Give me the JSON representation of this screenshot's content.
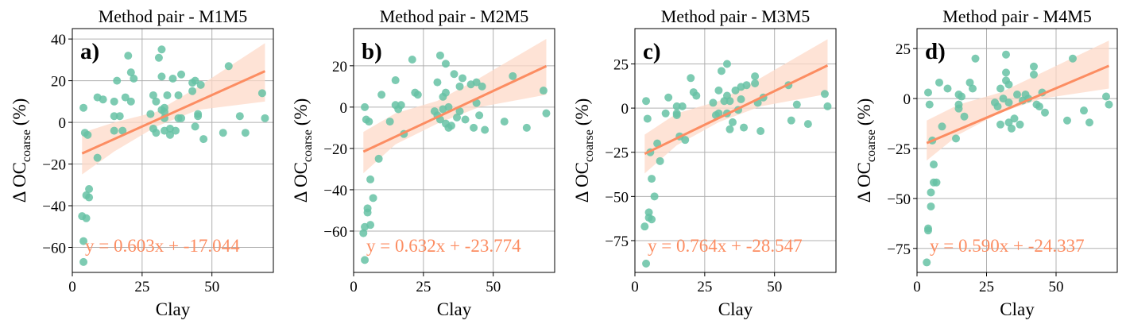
{
  "colors": {
    "points": "#66c2a5",
    "fit_line": "#fc8d62",
    "ci_band": "#fdd9c8",
    "grid": "#b0b0b0",
    "axes": "#000000"
  },
  "chart_data": [
    {
      "type": "scatter",
      "title": "Method pair - M1M5",
      "panel_label": "a)",
      "xlabel": "Clay",
      "ylabel_main": "Δ OC",
      "ylabel_sub": "coarse",
      "ylabel_unit": "(%)",
      "equation": "y = 0.603x + -17.044",
      "xlim": [
        0,
        72
      ],
      "ylim": [
        -72,
        45
      ],
      "xticks": [
        0,
        25,
        50
      ],
      "yticks": [
        -60,
        -40,
        -20,
        0,
        20,
        40
      ],
      "grid": true,
      "fit": {
        "slope": 0.603,
        "intercept": -17.044,
        "x_range": [
          3.5,
          69
        ]
      },
      "ci": {
        "lower": [
          [
            3.5,
            -25
          ],
          [
            15,
            -14
          ],
          [
            30,
            -2
          ],
          [
            45,
            6
          ],
          [
            69,
            10
          ]
        ],
        "upper": [
          [
            3.5,
            -5
          ],
          [
            15,
            0
          ],
          [
            30,
            5
          ],
          [
            45,
            17
          ],
          [
            69,
            38
          ]
        ]
      },
      "points": [
        [
          3.5,
          -45
        ],
        [
          4,
          -67
        ],
        [
          4,
          -57
        ],
        [
          4,
          7
        ],
        [
          4.5,
          -5
        ],
        [
          5,
          -46
        ],
        [
          5,
          -35
        ],
        [
          5.5,
          -6
        ],
        [
          6,
          -32
        ],
        [
          6,
          -36
        ],
        [
          9,
          -17
        ],
        [
          9,
          12
        ],
        [
          11,
          11
        ],
        [
          15,
          10
        ],
        [
          15,
          3
        ],
        [
          15,
          -4
        ],
        [
          16,
          20
        ],
        [
          17,
          3
        ],
        [
          18,
          -4
        ],
        [
          19,
          12
        ],
        [
          20,
          32
        ],
        [
          21,
          24
        ],
        [
          21,
          10
        ],
        [
          22,
          21
        ],
        [
          28,
          4
        ],
        [
          29,
          13
        ],
        [
          29,
          -3
        ],
        [
          30,
          -5
        ],
        [
          30,
          10
        ],
        [
          31,
          31
        ],
        [
          32,
          35
        ],
        [
          32,
          22
        ],
        [
          32,
          6
        ],
        [
          33,
          7
        ],
        [
          33,
          5
        ],
        [
          33,
          2
        ],
        [
          33,
          -4
        ],
        [
          34,
          13
        ],
        [
          35,
          -6
        ],
        [
          35,
          -3
        ],
        [
          36,
          21
        ],
        [
          37,
          -4
        ],
        [
          38,
          2
        ],
        [
          38,
          13
        ],
        [
          39,
          23
        ],
        [
          39,
          2
        ],
        [
          43,
          15
        ],
        [
          43,
          19
        ],
        [
          44,
          20
        ],
        [
          44,
          -2
        ],
        [
          45,
          4
        ],
        [
          45,
          3
        ],
        [
          46,
          18
        ],
        [
          47,
          -8
        ],
        [
          54,
          -5
        ],
        [
          56,
          27
        ],
        [
          60,
          3
        ],
        [
          62,
          -5
        ],
        [
          68,
          14
        ],
        [
          69,
          2
        ]
      ]
    },
    {
      "type": "scatter",
      "title": "Method pair - M2M5",
      "panel_label": "b)",
      "xlabel": "Clay",
      "ylabel_main": "Δ OC",
      "ylabel_sub": "coarse",
      "ylabel_unit": "(%)",
      "equation": "y = 0.632x + -23.774",
      "xlim": [
        0,
        72
      ],
      "ylim": [
        -80,
        38
      ],
      "xticks": [
        0,
        25,
        50
      ],
      "yticks": [
        -60,
        -40,
        -20,
        0,
        20
      ],
      "grid": true,
      "fit": {
        "slope": 0.632,
        "intercept": -23.774,
        "x_range": [
          3.5,
          69
        ]
      },
      "ci": {
        "lower": [
          [
            3.5,
            -32
          ],
          [
            15,
            -18
          ],
          [
            30,
            -8
          ],
          [
            45,
            0
          ],
          [
            69,
            6
          ]
        ],
        "upper": [
          [
            3.5,
            -12
          ],
          [
            15,
            -3
          ],
          [
            30,
            3
          ],
          [
            45,
            14
          ],
          [
            69,
            33
          ]
        ]
      },
      "points": [
        [
          3.5,
          -61
        ],
        [
          4,
          -74
        ],
        [
          4,
          -58
        ],
        [
          4,
          0
        ],
        [
          4.5,
          -6
        ],
        [
          5,
          -51
        ],
        [
          5,
          -49
        ],
        [
          5.5,
          -7
        ],
        [
          6,
          -57
        ],
        [
          6,
          -35
        ],
        [
          7,
          -44
        ],
        [
          9,
          -25
        ],
        [
          10,
          6
        ],
        [
          13,
          -7
        ],
        [
          15,
          1
        ],
        [
          15,
          13
        ],
        [
          16,
          -1
        ],
        [
          17,
          1
        ],
        [
          18,
          -13
        ],
        [
          21,
          23
        ],
        [
          22,
          7
        ],
        [
          23,
          6
        ],
        [
          29,
          -2
        ],
        [
          30,
          -4
        ],
        [
          30,
          12
        ],
        [
          31,
          -6
        ],
        [
          31,
          25
        ],
        [
          32,
          -1
        ],
        [
          32,
          5
        ],
        [
          33,
          21
        ],
        [
          33,
          7
        ],
        [
          33,
          -8
        ],
        [
          34,
          0
        ],
        [
          34,
          -10
        ],
        [
          35,
          -9
        ],
        [
          36,
          16
        ],
        [
          37,
          -5
        ],
        [
          38,
          10
        ],
        [
          38,
          -2
        ],
        [
          39,
          14
        ],
        [
          40,
          -6
        ],
        [
          42,
          11
        ],
        [
          43,
          -10
        ],
        [
          44,
          12
        ],
        [
          44,
          2
        ],
        [
          45,
          -4
        ],
        [
          46,
          10
        ],
        [
          47,
          -11
        ],
        [
          54,
          -7
        ],
        [
          57,
          15
        ],
        [
          62,
          -10
        ],
        [
          68,
          8
        ],
        [
          69,
          -3
        ]
      ]
    },
    {
      "type": "scatter",
      "title": "Method pair - M3M5",
      "panel_label": "c)",
      "xlabel": "Clay",
      "ylabel_main": "Δ OC",
      "ylabel_sub": "coarse",
      "ylabel_unit": "(%)",
      "equation": "y = 0.764x + -28.547",
      "xlim": [
        0,
        72
      ],
      "ylim": [
        -93,
        45
      ],
      "xticks": [
        0,
        25,
        50
      ],
      "yticks": [
        -75,
        -50,
        -25,
        0,
        25
      ],
      "grid": true,
      "fit": {
        "slope": 0.764,
        "intercept": -28.547,
        "x_range": [
          3.5,
          69
        ]
      },
      "ci": {
        "lower": [
          [
            3.5,
            -37
          ],
          [
            15,
            -21
          ],
          [
            30,
            -8
          ],
          [
            45,
            1
          ],
          [
            69,
            8
          ]
        ],
        "upper": [
          [
            3.5,
            -15
          ],
          [
            15,
            -3
          ],
          [
            30,
            4
          ],
          [
            45,
            17
          ],
          [
            69,
            39
          ]
        ]
      },
      "points": [
        [
          3.5,
          -67
        ],
        [
          4,
          -88
        ],
        [
          4,
          4
        ],
        [
          4.5,
          -6
        ],
        [
          5,
          -62
        ],
        [
          5,
          -59
        ],
        [
          5.5,
          -25
        ],
        [
          6,
          -63
        ],
        [
          6,
          -40
        ],
        [
          7,
          -50
        ],
        [
          8,
          -20
        ],
        [
          9,
          -30
        ],
        [
          11,
          -3
        ],
        [
          12,
          6
        ],
        [
          15,
          1
        ],
        [
          15,
          -3
        ],
        [
          15,
          -4
        ],
        [
          16,
          -16
        ],
        [
          17,
          1
        ],
        [
          18,
          -18
        ],
        [
          20,
          17
        ],
        [
          21,
          9
        ],
        [
          22,
          7
        ],
        [
          28,
          3
        ],
        [
          29,
          -4
        ],
        [
          30,
          10
        ],
        [
          30,
          -3
        ],
        [
          31,
          21
        ],
        [
          32,
          4
        ],
        [
          33,
          25
        ],
        [
          33,
          7
        ],
        [
          33,
          -3
        ],
        [
          34,
          -12
        ],
        [
          34,
          4
        ],
        [
          35,
          -8
        ],
        [
          36,
          10
        ],
        [
          37,
          -1
        ],
        [
          38,
          5
        ],
        [
          38,
          12
        ],
        [
          39,
          -11
        ],
        [
          40,
          13
        ],
        [
          43,
          18
        ],
        [
          43,
          14
        ],
        [
          44,
          3
        ],
        [
          45,
          -13
        ],
        [
          46,
          6
        ],
        [
          55,
          13
        ],
        [
          56,
          -7
        ],
        [
          58,
          2
        ],
        [
          62,
          -9
        ],
        [
          68,
          8
        ],
        [
          69,
          1
        ]
      ]
    },
    {
      "type": "scatter",
      "title": "Method pair - M4M5",
      "panel_label": "d)",
      "xlabel": "Clay",
      "ylabel_main": "Δ OC",
      "ylabel_sub": "coarse",
      "ylabel_unit": "(%)",
      "equation": "y = 0.590x + -24.337",
      "xlim": [
        0,
        72
      ],
      "ylim": [
        -87,
        35
      ],
      "xticks": [
        0,
        25,
        50
      ],
      "yticks": [
        -75,
        -50,
        -25,
        0,
        25
      ],
      "grid": true,
      "fit": {
        "slope": 0.59,
        "intercept": -24.337,
        "x_range": [
          3.5,
          69
        ]
      },
      "ci": {
        "lower": [
          [
            3.5,
            -31
          ],
          [
            15,
            -18
          ],
          [
            30,
            -7
          ],
          [
            45,
            0
          ],
          [
            69,
            5
          ]
        ],
        "upper": [
          [
            3.5,
            -11
          ],
          [
            15,
            -3
          ],
          [
            30,
            3
          ],
          [
            45,
            13
          ],
          [
            69,
            29
          ]
        ]
      },
      "points": [
        [
          3.5,
          -82
        ],
        [
          4,
          -65
        ],
        [
          4,
          -66
        ],
        [
          4,
          3
        ],
        [
          4.5,
          -3
        ],
        [
          5,
          -47
        ],
        [
          5,
          -54
        ],
        [
          5.5,
          -21
        ],
        [
          6,
          -33
        ],
        [
          6,
          -42
        ],
        [
          7,
          -42
        ],
        [
          8,
          8
        ],
        [
          9,
          -14
        ],
        [
          11,
          5
        ],
        [
          14,
          -20
        ],
        [
          15,
          -3
        ],
        [
          15,
          -5
        ],
        [
          15,
          2
        ],
        [
          16,
          1
        ],
        [
          17,
          -9
        ],
        [
          19,
          8
        ],
        [
          20,
          5
        ],
        [
          21,
          20
        ],
        [
          28,
          -2
        ],
        [
          29,
          -4
        ],
        [
          30,
          5
        ],
        [
          30,
          -13
        ],
        [
          31,
          0
        ],
        [
          32,
          13
        ],
        [
          32,
          9
        ],
        [
          32,
          22
        ],
        [
          33,
          -12
        ],
        [
          33,
          7
        ],
        [
          33,
          -2
        ],
        [
          34,
          -15
        ],
        [
          35,
          -10
        ],
        [
          36,
          2
        ],
        [
          37,
          -13
        ],
        [
          38,
          -1
        ],
        [
          39,
          2
        ],
        [
          40,
          0
        ],
        [
          42,
          16
        ],
        [
          42,
          12
        ],
        [
          43,
          -3
        ],
        [
          44,
          -4
        ],
        [
          45,
          3
        ],
        [
          46,
          -7
        ],
        [
          54,
          -11
        ],
        [
          56,
          20
        ],
        [
          60,
          -6
        ],
        [
          62,
          -12
        ],
        [
          68,
          1
        ],
        [
          69,
          -3
        ]
      ]
    }
  ]
}
